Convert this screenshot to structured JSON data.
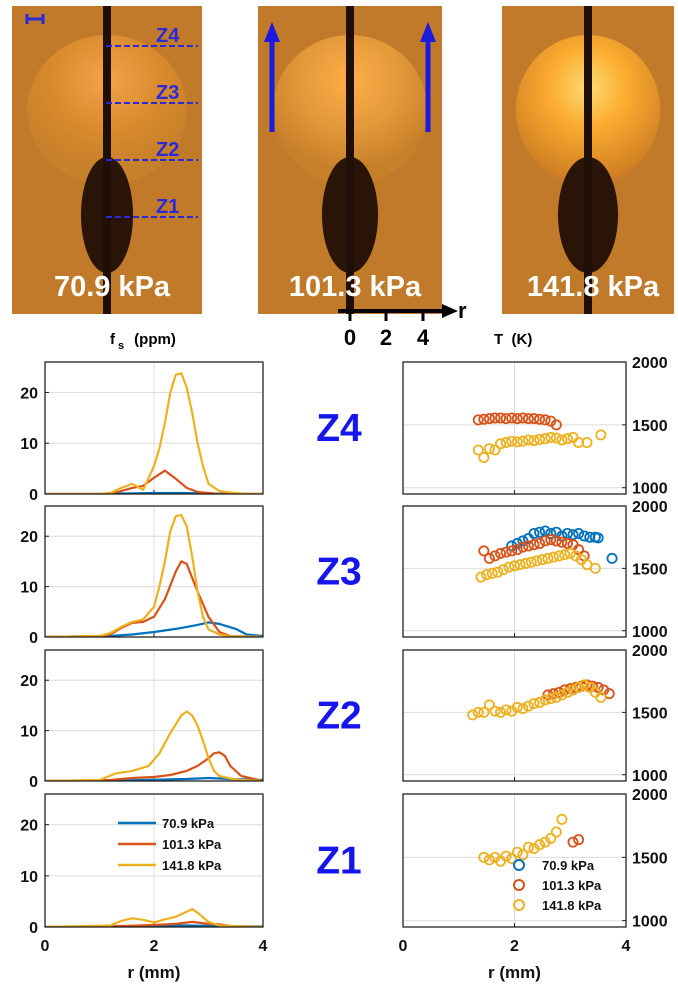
{
  "photos": [
    {
      "label": "70.9 kPa",
      "zones": [
        "Z4",
        "Z3",
        "Z2",
        "Z1"
      ]
    },
    {
      "label": "101.3 kPa"
    },
    {
      "label": "141.8 kPa"
    }
  ],
  "r_axis_diagram": {
    "label": "r",
    "ticks": [
      "0",
      "2",
      "4"
    ]
  },
  "left_header": {
    "main": "f",
    "sub": "s",
    "rest": " (ppm)"
  },
  "right_header": "T  (K)",
  "colors": {
    "70.9 kPa": "#0072BD",
    "101.3 kPa": "#D95319",
    "141.8 kPa": "#EDB120",
    "zone_text": "#1515ee",
    "dash": "#2a2ad8"
  },
  "chart_data": [
    {
      "type": "line",
      "zone": "Z4",
      "title": "",
      "xlabel": "",
      "ylabel": "f_s (ppm)",
      "xlim": [
        0,
        4
      ],
      "ylim": [
        0,
        26
      ],
      "yticks": [
        0,
        10,
        20
      ],
      "xticks": [
        0,
        2,
        4
      ],
      "grid": true,
      "series": [
        {
          "name": "70.9 kPa",
          "x": [
            0,
            1.0,
            1.2,
            1.5,
            2.0,
            2.5,
            3.0,
            3.5,
            4.0
          ],
          "y": [
            0,
            0,
            0.1,
            0.1,
            0.2,
            0.2,
            0.1,
            0,
            0
          ]
        },
        {
          "name": "101.3 kPa",
          "x": [
            0,
            1.0,
            1.3,
            1.6,
            1.8,
            2.0,
            2.2,
            2.4,
            2.6,
            2.8,
            3.0,
            3.2,
            4.0
          ],
          "y": [
            0,
            0,
            0.3,
            1.2,
            1.6,
            3.2,
            4.6,
            3.0,
            1.2,
            0.4,
            0.2,
            0,
            0
          ]
        },
        {
          "name": "141.8 kPa",
          "x": [
            0,
            1.0,
            1.2,
            1.4,
            1.6,
            1.8,
            2.0,
            2.1,
            2.2,
            2.3,
            2.4,
            2.5,
            2.6,
            2.7,
            2.8,
            2.9,
            3.0,
            3.2,
            3.4,
            3.6,
            4.0
          ],
          "y": [
            0,
            0,
            0.2,
            1.2,
            2.0,
            0.8,
            5.5,
            9.0,
            14.0,
            20.0,
            23.5,
            23.8,
            21.0,
            16.0,
            10.0,
            5.5,
            2.0,
            0.6,
            0.3,
            0.1,
            0
          ]
        }
      ]
    },
    {
      "type": "line",
      "zone": "Z3",
      "title": "",
      "xlabel": "",
      "ylabel": "",
      "xlim": [
        0,
        4
      ],
      "ylim": [
        0,
        26
      ],
      "yticks": [
        0,
        10,
        20
      ],
      "xticks": [
        0,
        2,
        4
      ],
      "grid": true,
      "series": [
        {
          "name": "70.9 kPa",
          "x": [
            0,
            1.2,
            1.6,
            2.0,
            2.4,
            2.8,
            3.0,
            3.2,
            3.5,
            3.7,
            4.0
          ],
          "y": [
            0,
            0.2,
            0.5,
            1.0,
            1.6,
            2.4,
            2.9,
            2.6,
            1.6,
            0.5,
            0.2
          ]
        },
        {
          "name": "101.3 kPa",
          "x": [
            0,
            1.0,
            1.2,
            1.4,
            1.6,
            1.8,
            2.0,
            2.2,
            2.4,
            2.5,
            2.6,
            2.8,
            3.0,
            3.2,
            3.4,
            4.0
          ],
          "y": [
            0,
            0.2,
            0.5,
            1.8,
            2.8,
            3.0,
            4.0,
            7.5,
            13.0,
            15.0,
            14.5,
            9.0,
            4.0,
            1.0,
            0.2,
            0
          ]
        },
        {
          "name": "141.8 kPa",
          "x": [
            0,
            1.0,
            1.2,
            1.4,
            1.6,
            1.8,
            2.0,
            2.1,
            2.2,
            2.3,
            2.4,
            2.5,
            2.6,
            2.7,
            2.8,
            2.9,
            3.0,
            3.2,
            3.4,
            4.0
          ],
          "y": [
            0,
            0.2,
            0.8,
            2.0,
            3.0,
            3.5,
            6.0,
            10.0,
            15.0,
            21.0,
            24.0,
            24.2,
            22.0,
            16.0,
            9.0,
            4.0,
            1.5,
            0.5,
            0.2,
            0
          ]
        }
      ]
    },
    {
      "type": "line",
      "zone": "Z2",
      "title": "",
      "xlabel": "",
      "ylabel": "",
      "xlim": [
        0,
        4
      ],
      "ylim": [
        0,
        26
      ],
      "yticks": [
        0,
        10,
        20
      ],
      "xticks": [
        0,
        2,
        4
      ],
      "grid": true,
      "series": [
        {
          "name": "70.9 kPa",
          "x": [
            0,
            1.4,
            1.8,
            2.2,
            2.6,
            3.0,
            3.4,
            4.0
          ],
          "y": [
            0,
            0.1,
            0.2,
            0.3,
            0.4,
            0.6,
            0.4,
            0.2
          ]
        },
        {
          "name": "101.3 kPa",
          "x": [
            0,
            1.2,
            1.6,
            2.0,
            2.3,
            2.6,
            2.8,
            3.0,
            3.1,
            3.2,
            3.3,
            3.4,
            3.6,
            4.0
          ],
          "y": [
            0,
            0.2,
            0.6,
            0.8,
            1.2,
            2.0,
            3.0,
            4.5,
            5.5,
            5.7,
            5.0,
            3.0,
            1.0,
            0
          ]
        },
        {
          "name": "141.8 kPa",
          "x": [
            0,
            1.0,
            1.3,
            1.6,
            1.9,
            2.1,
            2.3,
            2.5,
            2.6,
            2.7,
            2.8,
            2.9,
            3.0,
            3.1,
            3.2,
            3.4,
            3.6,
            4.0
          ],
          "y": [
            0,
            0.2,
            1.5,
            2.0,
            3.0,
            5.5,
            9.5,
            13.0,
            13.8,
            13.0,
            11.0,
            8.0,
            4.5,
            2.0,
            1.0,
            0.5,
            0.2,
            0
          ]
        }
      ]
    },
    {
      "type": "line",
      "zone": "Z1",
      "title": "",
      "xlabel": "r (mm)",
      "ylabel": "",
      "xlim": [
        0,
        4
      ],
      "ylim": [
        0,
        26
      ],
      "yticks": [
        0,
        10,
        20
      ],
      "xticks": [
        0,
        2,
        4
      ],
      "xticklabels": [
        "0",
        "2",
        "4"
      ],
      "grid": true,
      "legend": "center-left",
      "series": [
        {
          "name": "70.9 kPa",
          "x": [
            0,
            1.4,
            2.0,
            2.6,
            3.2,
            4.0
          ],
          "y": [
            0,
            0.1,
            0.2,
            0.3,
            0.2,
            0.1
          ]
        },
        {
          "name": "101.3 kPa",
          "x": [
            0,
            1.4,
            2.0,
            2.4,
            2.7,
            3.0,
            3.2,
            3.4,
            4.0
          ],
          "y": [
            0,
            0.2,
            0.4,
            0.6,
            1.0,
            0.6,
            0.5,
            0.2,
            0
          ]
        },
        {
          "name": "141.8 kPa",
          "x": [
            0,
            1.2,
            1.4,
            1.6,
            1.8,
            2.0,
            2.2,
            2.4,
            2.6,
            2.7,
            2.8,
            3.0,
            3.2,
            4.0
          ],
          "y": [
            0,
            0.3,
            1.2,
            1.7,
            1.4,
            0.9,
            1.5,
            2.0,
            3.0,
            3.5,
            2.8,
            1.0,
            0.3,
            0
          ]
        }
      ]
    },
    {
      "type": "scatter",
      "zone": "Z4",
      "title": "",
      "xlabel": "",
      "ylabel": "T (K)",
      "xlim": [
        0,
        4
      ],
      "ylim": [
        950,
        2000
      ],
      "yticks": [
        1000,
        1500,
        2000
      ],
      "xticks": [
        0,
        2,
        4
      ],
      "grid": true,
      "series": [
        {
          "name": "101.3 kPa",
          "x": [
            1.35,
            1.45,
            1.55,
            1.65,
            1.75,
            1.85,
            1.95,
            2.05,
            2.15,
            2.25,
            2.35,
            2.45,
            2.55,
            2.65,
            2.75
          ],
          "y": [
            1540,
            1545,
            1550,
            1555,
            1555,
            1550,
            1555,
            1550,
            1555,
            1550,
            1550,
            1545,
            1540,
            1530,
            1500
          ]
        },
        {
          "name": "141.8 kPa",
          "x": [
            1.35,
            1.45,
            1.55,
            1.65,
            1.75,
            1.85,
            1.95,
            2.05,
            2.15,
            2.25,
            2.35,
            2.45,
            2.55,
            2.65,
            2.75,
            2.85,
            2.95,
            3.05,
            3.15,
            3.3,
            3.55
          ],
          "y": [
            1300,
            1240,
            1310,
            1300,
            1350,
            1360,
            1370,
            1365,
            1370,
            1380,
            1375,
            1385,
            1390,
            1400,
            1395,
            1380,
            1390,
            1400,
            1360,
            1360,
            1420
          ]
        }
      ]
    },
    {
      "type": "scatter",
      "zone": "Z3",
      "title": "",
      "xlabel": "",
      "ylabel": "",
      "xlim": [
        0,
        4
      ],
      "ylim": [
        950,
        2000
      ],
      "yticks": [
        1000,
        1500,
        2000
      ],
      "xticks": [
        0,
        2,
        4
      ],
      "grid": true,
      "series": [
        {
          "name": "70.9 kPa",
          "x": [
            1.95,
            2.05,
            2.15,
            2.25,
            2.35,
            2.45,
            2.55,
            2.65,
            2.75,
            2.85,
            2.95,
            3.05,
            3.15,
            3.25,
            3.35,
            3.45,
            3.5,
            3.75
          ],
          "y": [
            1680,
            1700,
            1720,
            1740,
            1780,
            1790,
            1800,
            1780,
            1790,
            1760,
            1780,
            1770,
            1780,
            1760,
            1750,
            1750,
            1745,
            1580
          ]
        },
        {
          "name": "101.3 kPa",
          "x": [
            1.45,
            1.55,
            1.65,
            1.75,
            1.85,
            1.95,
            2.05,
            2.15,
            2.25,
            2.35,
            2.45,
            2.55,
            2.65,
            2.75,
            2.85,
            2.95,
            3.05,
            3.15,
            3.25
          ],
          "y": [
            1640,
            1580,
            1600,
            1620,
            1630,
            1640,
            1650,
            1670,
            1680,
            1690,
            1700,
            1720,
            1730,
            1720,
            1710,
            1700,
            1690,
            1650,
            1600
          ]
        },
        {
          "name": "141.8 kPa",
          "x": [
            1.4,
            1.5,
            1.6,
            1.7,
            1.8,
            1.9,
            2.0,
            2.1,
            2.2,
            2.3,
            2.4,
            2.5,
            2.6,
            2.7,
            2.8,
            2.9,
            3.0,
            3.1,
            3.2,
            3.3,
            3.45
          ],
          "y": [
            1430,
            1450,
            1460,
            1470,
            1490,
            1510,
            1520,
            1530,
            1540,
            1550,
            1560,
            1570,
            1580,
            1590,
            1600,
            1610,
            1620,
            1600,
            1570,
            1530,
            1500
          ]
        }
      ]
    },
    {
      "type": "scatter",
      "zone": "Z2",
      "title": "",
      "xlabel": "",
      "ylabel": "",
      "xlim": [
        0,
        4
      ],
      "ylim": [
        950,
        2000
      ],
      "yticks": [
        1000,
        1500,
        2000
      ],
      "xticks": [
        0,
        2,
        4
      ],
      "grid": true,
      "series": [
        {
          "name": "101.3 kPa",
          "x": [
            2.6,
            2.7,
            2.8,
            2.9,
            3.0,
            3.1,
            3.2,
            3.3,
            3.4,
            3.5,
            3.6,
            3.7
          ],
          "y": [
            1640,
            1650,
            1660,
            1680,
            1690,
            1700,
            1710,
            1720,
            1710,
            1700,
            1680,
            1650
          ]
        },
        {
          "name": "141.8 kPa",
          "x": [
            1.25,
            1.35,
            1.45,
            1.55,
            1.65,
            1.75,
            1.85,
            1.95,
            2.05,
            2.15,
            2.25,
            2.35,
            2.45,
            2.55,
            2.65,
            2.75,
            2.85,
            2.95,
            3.05,
            3.15,
            3.25,
            3.35,
            3.45,
            3.55
          ],
          "y": [
            1480,
            1500,
            1500,
            1560,
            1510,
            1500,
            1520,
            1510,
            1540,
            1530,
            1550,
            1570,
            1580,
            1600,
            1610,
            1620,
            1640,
            1660,
            1680,
            1700,
            1720,
            1700,
            1660,
            1620
          ]
        }
      ]
    },
    {
      "type": "scatter",
      "zone": "Z1",
      "title": "",
      "xlabel": "r (mm)",
      "ylabel": "",
      "xlim": [
        0,
        4
      ],
      "ylim": [
        950,
        2000
      ],
      "yticks": [
        1000,
        1500,
        2000
      ],
      "xticks": [
        0,
        2,
        4
      ],
      "xticklabels": [
        "0",
        "2",
        "4"
      ],
      "grid": true,
      "legend": "bottom-right",
      "series": [
        {
          "name": "70.9 kPa",
          "x": [],
          "y": []
        },
        {
          "name": "101.3 kPa",
          "x": [
            3.05,
            3.15
          ],
          "y": [
            1620,
            1640
          ]
        },
        {
          "name": "141.8 kPa",
          "x": [
            1.45,
            1.55,
            1.65,
            1.75,
            1.85,
            1.95,
            2.05,
            2.15,
            2.25,
            2.35,
            2.45,
            2.55,
            2.65,
            2.75,
            2.85
          ],
          "y": [
            1500,
            1480,
            1500,
            1470,
            1510,
            1490,
            1540,
            1520,
            1580,
            1570,
            1600,
            1620,
            1650,
            1700,
            1800
          ]
        }
      ]
    }
  ]
}
